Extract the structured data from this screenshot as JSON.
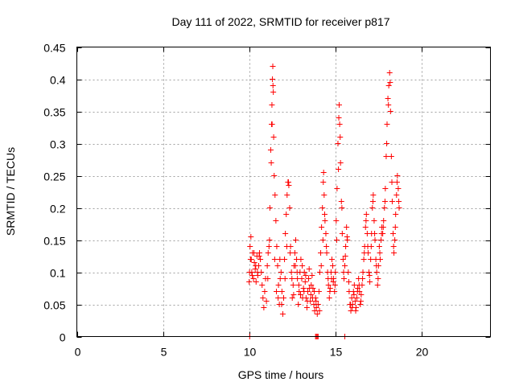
{
  "chart_data": {
    "type": "scatter",
    "title": "Day 111 of 2022, SRMTID for receiver p817",
    "xlabel": "GPS time / hours",
    "ylabel": "SRMTID / TECUs",
    "xlim": [
      0,
      24
    ],
    "ylim": [
      0,
      0.45
    ],
    "xticks": [
      0,
      5,
      10,
      15,
      20
    ],
    "xtick_labels": [
      "0",
      "5",
      "10",
      "15",
      "20"
    ],
    "yticks": [
      0,
      0.05,
      0.1,
      0.15,
      0.2,
      0.25,
      0.3,
      0.35,
      0.4,
      0.45
    ],
    "ytick_labels": [
      "0",
      "0.05",
      "0.1",
      "0.15",
      "0.2",
      "0.25",
      "0.3",
      "0.35",
      "0.4",
      "0.45"
    ],
    "grid": true,
    "marker": "+",
    "color": "#ff0000",
    "series": [
      {
        "name": "SRMTID",
        "points": [
          [
            10.0,
            0.085
          ],
          [
            10.05,
            0.14
          ],
          [
            10.1,
            0.155
          ],
          [
            10.12,
            0.12
          ],
          [
            10.15,
            0.1
          ],
          [
            10.2,
            0.13
          ],
          [
            10.25,
            0.09
          ],
          [
            10.3,
            0.115
          ],
          [
            10.35,
            0.105
          ],
          [
            10.4,
            0.085
          ],
          [
            10.45,
            0.125
          ],
          [
            10.5,
            0.095
          ],
          [
            10.55,
            0.11
          ],
          [
            10.6,
            0.13
          ],
          [
            10.65,
            0.12
          ],
          [
            10.7,
            0.1
          ],
          [
            10.75,
            0.08
          ],
          [
            10.8,
            0.06
          ],
          [
            10.85,
            0.045
          ],
          [
            10.9,
            0.07
          ],
          [
            10.95,
            0.09
          ],
          [
            11.0,
            0.055
          ],
          [
            11.05,
            0.11
          ],
          [
            11.1,
            0.13
          ],
          [
            11.15,
            0.14
          ],
          [
            11.2,
            0.2
          ],
          [
            11.25,
            0.29
          ],
          [
            11.3,
            0.33
          ],
          [
            11.32,
            0.36
          ],
          [
            11.35,
            0.4
          ],
          [
            11.37,
            0.42
          ],
          [
            11.4,
            0.38
          ],
          [
            11.42,
            0.31
          ],
          [
            11.45,
            0.25
          ],
          [
            11.5,
            0.22
          ],
          [
            11.55,
            0.18
          ],
          [
            11.6,
            0.14
          ],
          [
            11.65,
            0.11
          ],
          [
            11.7,
            0.08
          ],
          [
            11.75,
            0.05
          ],
          [
            11.8,
            0.09
          ],
          [
            11.85,
            0.1
          ],
          [
            11.9,
            0.07
          ],
          [
            11.95,
            0.035
          ],
          [
            12.0,
            0.06
          ],
          [
            12.05,
            0.12
          ],
          [
            12.1,
            0.16
          ],
          [
            12.15,
            0.19
          ],
          [
            12.2,
            0.22
          ],
          [
            12.25,
            0.24
          ],
          [
            12.3,
            0.235
          ],
          [
            12.35,
            0.2
          ],
          [
            12.4,
            0.14
          ],
          [
            12.45,
            0.1
          ],
          [
            12.5,
            0.06
          ],
          [
            12.55,
            0.08
          ],
          [
            12.6,
            0.11
          ],
          [
            12.65,
            0.13
          ],
          [
            12.7,
            0.15
          ],
          [
            12.75,
            0.12
          ],
          [
            12.8,
            0.09
          ],
          [
            12.85,
            0.05
          ],
          [
            12.9,
            0.07
          ],
          [
            12.95,
            0.1
          ],
          [
            13.0,
            0.12
          ],
          [
            13.05,
            0.09
          ],
          [
            13.1,
            0.06
          ],
          [
            13.15,
            0.075
          ],
          [
            13.2,
            0.1
          ],
          [
            13.25,
            0.085
          ],
          [
            13.3,
            0.06
          ],
          [
            13.35,
            0.045
          ],
          [
            13.4,
            0.07
          ],
          [
            13.45,
            0.09
          ],
          [
            13.5,
            0.075
          ],
          [
            13.55,
            0.055
          ],
          [
            13.6,
            0.08
          ],
          [
            13.65,
            0.095
          ],
          [
            13.7,
            0.075
          ],
          [
            13.75,
            0.05
          ],
          [
            13.8,
            0.04
          ],
          [
            13.85,
            0.06
          ],
          [
            13.9,
            0.045
          ],
          [
            13.95,
            0.035
          ],
          [
            14.0,
            0.05
          ],
          [
            14.05,
            0.07
          ],
          [
            14.1,
            0.1
          ],
          [
            14.15,
            0.13
          ],
          [
            14.2,
            0.17
          ],
          [
            14.25,
            0.2
          ],
          [
            14.3,
            0.24
          ],
          [
            14.32,
            0.255
          ],
          [
            14.35,
            0.22
          ],
          [
            14.4,
            0.18
          ],
          [
            14.45,
            0.16
          ],
          [
            14.5,
            0.13
          ],
          [
            14.55,
            0.1
          ],
          [
            14.6,
            0.08
          ],
          [
            14.65,
            0.06
          ],
          [
            14.7,
            0.075
          ],
          [
            14.75,
            0.1
          ],
          [
            14.8,
            0.12
          ],
          [
            14.85,
            0.11
          ],
          [
            14.9,
            0.09
          ],
          [
            14.95,
            0.07
          ],
          [
            15.0,
            0.1
          ],
          [
            15.05,
            0.18
          ],
          [
            15.1,
            0.23
          ],
          [
            15.15,
            0.3
          ],
          [
            15.2,
            0.34
          ],
          [
            15.22,
            0.36
          ],
          [
            15.25,
            0.33
          ],
          [
            15.3,
            0.27
          ],
          [
            15.35,
            0.21
          ],
          [
            15.4,
            0.16
          ],
          [
            15.45,
            0.12
          ],
          [
            15.5,
            0.09
          ],
          [
            15.55,
            0.11
          ],
          [
            15.6,
            0.14
          ],
          [
            15.65,
            0.17
          ],
          [
            15.7,
            0.15
          ],
          [
            15.75,
            0.1
          ],
          [
            15.8,
            0.07
          ],
          [
            15.85,
            0.05
          ],
          [
            15.9,
            0.04
          ],
          [
            15.95,
            0.06
          ],
          [
            16.0,
            0.05
          ],
          [
            16.05,
            0.07
          ],
          [
            16.1,
            0.08
          ],
          [
            16.15,
            0.055
          ],
          [
            16.2,
            0.045
          ],
          [
            16.25,
            0.06
          ],
          [
            16.3,
            0.075
          ],
          [
            16.35,
            0.09
          ],
          [
            16.4,
            0.07
          ],
          [
            16.45,
            0.05
          ],
          [
            16.5,
            0.065
          ],
          [
            16.55,
            0.08
          ],
          [
            16.6,
            0.1
          ],
          [
            16.65,
            0.12
          ],
          [
            16.7,
            0.14
          ],
          [
            16.75,
            0.17
          ],
          [
            16.8,
            0.19
          ],
          [
            16.85,
            0.16
          ],
          [
            16.9,
            0.13
          ],
          [
            16.95,
            0.1
          ],
          [
            17.0,
            0.085
          ],
          [
            17.05,
            0.12
          ],
          [
            17.1,
            0.16
          ],
          [
            17.15,
            0.2
          ],
          [
            17.2,
            0.22
          ],
          [
            17.25,
            0.18
          ],
          [
            17.3,
            0.15
          ],
          [
            17.35,
            0.12
          ],
          [
            17.4,
            0.1
          ],
          [
            17.45,
            0.08
          ],
          [
            17.5,
            0.11
          ],
          [
            17.55,
            0.14
          ],
          [
            17.6,
            0.12
          ],
          [
            17.65,
            0.15
          ],
          [
            17.7,
            0.17
          ],
          [
            17.75,
            0.16
          ],
          [
            17.8,
            0.18
          ],
          [
            17.85,
            0.2
          ],
          [
            17.9,
            0.23
          ],
          [
            17.95,
            0.28
          ],
          [
            18.0,
            0.33
          ],
          [
            18.05,
            0.37
          ],
          [
            18.1,
            0.39
          ],
          [
            18.15,
            0.41
          ],
          [
            18.2,
            0.35
          ],
          [
            18.25,
            0.28
          ],
          [
            18.3,
            0.21
          ],
          [
            18.35,
            0.16
          ],
          [
            18.4,
            0.13
          ],
          [
            18.45,
            0.15
          ],
          [
            18.5,
            0.19
          ],
          [
            18.55,
            0.22
          ],
          [
            18.6,
            0.25
          ],
          [
            18.65,
            0.23
          ],
          [
            18.7,
            0.2
          ],
          [
            10.02,
            0.1
          ],
          [
            10.08,
            0.12
          ],
          [
            10.18,
            0.095
          ],
          [
            10.28,
            0.13
          ],
          [
            10.38,
            0.11
          ],
          [
            10.48,
            0.1
          ],
          [
            10.58,
            0.125
          ],
          [
            11.08,
            0.09
          ],
          [
            11.18,
            0.15
          ],
          [
            11.28,
            0.27
          ],
          [
            11.33,
            0.33
          ],
          [
            11.38,
            0.39
          ],
          [
            11.48,
            0.12
          ],
          [
            11.58,
            0.07
          ],
          [
            11.68,
            0.06
          ],
          [
            11.78,
            0.12
          ],
          [
            11.88,
            0.05
          ],
          [
            12.08,
            0.09
          ],
          [
            12.18,
            0.14
          ],
          [
            12.28,
            0.24
          ],
          [
            12.38,
            0.13
          ],
          [
            12.48,
            0.09
          ],
          [
            12.58,
            0.065
          ],
          [
            12.68,
            0.11
          ],
          [
            12.78,
            0.1
          ],
          [
            12.88,
            0.08
          ],
          [
            12.98,
            0.065
          ],
          [
            13.08,
            0.11
          ],
          [
            13.18,
            0.07
          ],
          [
            13.28,
            0.095
          ],
          [
            13.38,
            0.055
          ],
          [
            13.48,
            0.105
          ],
          [
            13.58,
            0.065
          ],
          [
            13.68,
            0.06
          ],
          [
            13.78,
            0.07
          ],
          [
            13.88,
            0.055
          ],
          [
            14.08,
            0.04
          ],
          [
            14.18,
            0.11
          ],
          [
            14.28,
            0.15
          ],
          [
            14.38,
            0.19
          ],
          [
            14.48,
            0.14
          ],
          [
            14.58,
            0.09
          ],
          [
            14.68,
            0.07
          ],
          [
            14.78,
            0.09
          ],
          [
            14.88,
            0.085
          ],
          [
            14.98,
            0.08
          ],
          [
            15.08,
            0.15
          ],
          [
            15.18,
            0.26
          ],
          [
            15.28,
            0.31
          ],
          [
            15.38,
            0.2
          ],
          [
            15.48,
            0.1
          ],
          [
            15.58,
            0.125
          ],
          [
            15.68,
            0.155
          ],
          [
            15.78,
            0.085
          ],
          [
            15.88,
            0.05
          ],
          [
            15.98,
            0.045
          ],
          [
            16.08,
            0.065
          ],
          [
            16.18,
            0.04
          ],
          [
            16.28,
            0.07
          ],
          [
            16.38,
            0.08
          ],
          [
            16.48,
            0.055
          ],
          [
            16.58,
            0.09
          ],
          [
            16.68,
            0.13
          ],
          [
            16.78,
            0.18
          ],
          [
            16.88,
            0.14
          ],
          [
            16.98,
            0.095
          ],
          [
            17.08,
            0.14
          ],
          [
            17.18,
            0.21
          ],
          [
            17.28,
            0.16
          ],
          [
            17.38,
            0.11
          ],
          [
            17.48,
            0.09
          ],
          [
            17.58,
            0.13
          ],
          [
            17.68,
            0.16
          ],
          [
            17.78,
            0.17
          ],
          [
            17.88,
            0.21
          ],
          [
            17.98,
            0.3
          ],
          [
            18.08,
            0.36
          ],
          [
            18.18,
            0.395
          ],
          [
            18.28,
            0.24
          ],
          [
            18.38,
            0.14
          ],
          [
            18.48,
            0.17
          ],
          [
            18.58,
            0.24
          ],
          [
            18.68,
            0.21
          ],
          [
            10.03,
            0.0
          ],
          [
            13.85,
            0.0
          ],
          [
            13.9,
            0.0
          ],
          [
            13.95,
            0.0
          ],
          [
            14.0,
            0.0
          ],
          [
            15.55,
            0.0
          ]
        ]
      }
    ]
  }
}
